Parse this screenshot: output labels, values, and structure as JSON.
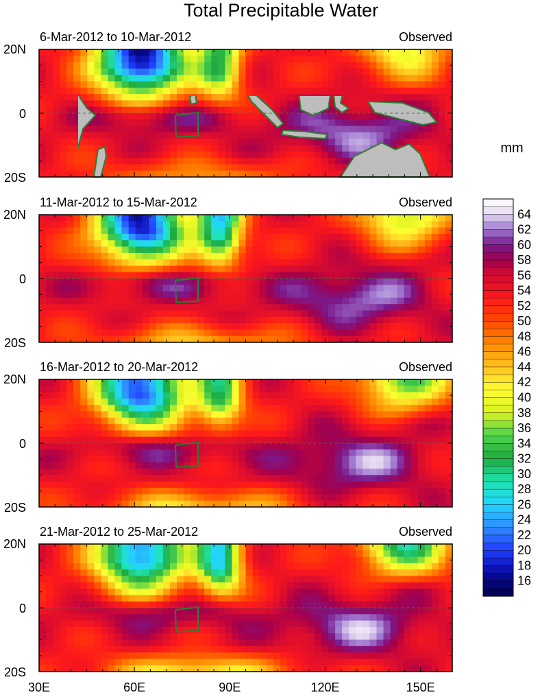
{
  "chart_data": {
    "type": "heatmap",
    "title": "Total Precipitable Water",
    "units": "mm",
    "x_ticks": [
      "30E",
      "60E",
      "90E",
      "120E",
      "150E"
    ],
    "y_ticks": [
      "20N",
      "0",
      "20S"
    ],
    "x_range": [
      30,
      160
    ],
    "y_range": [
      -20,
      20
    ],
    "colorbar": {
      "labels": [
        "64",
        "62",
        "60",
        "58",
        "56",
        "54",
        "52",
        "50",
        "48",
        "46",
        "44",
        "42",
        "40",
        "38",
        "36",
        "34",
        "32",
        "30",
        "28",
        "26",
        "24",
        "22",
        "20",
        "18",
        "16"
      ],
      "min": 14,
      "max": 66
    },
    "panels": [
      {
        "period": "6-Mar-2012 to 10-Mar-2012",
        "label": "Observed"
      },
      {
        "period": "11-Mar-2012 to 15-Mar-2012",
        "label": "Observed"
      },
      {
        "period": "16-Mar-2012 to 20-Mar-2012",
        "label": "Observed"
      },
      {
        "period": "21-Mar-2012 to 25-Mar-2012",
        "label": "Observed"
      }
    ]
  },
  "colors": {
    "land": "#bdbdbd",
    "coast": "#2e7d32",
    "equator": "#3a7a3a"
  }
}
